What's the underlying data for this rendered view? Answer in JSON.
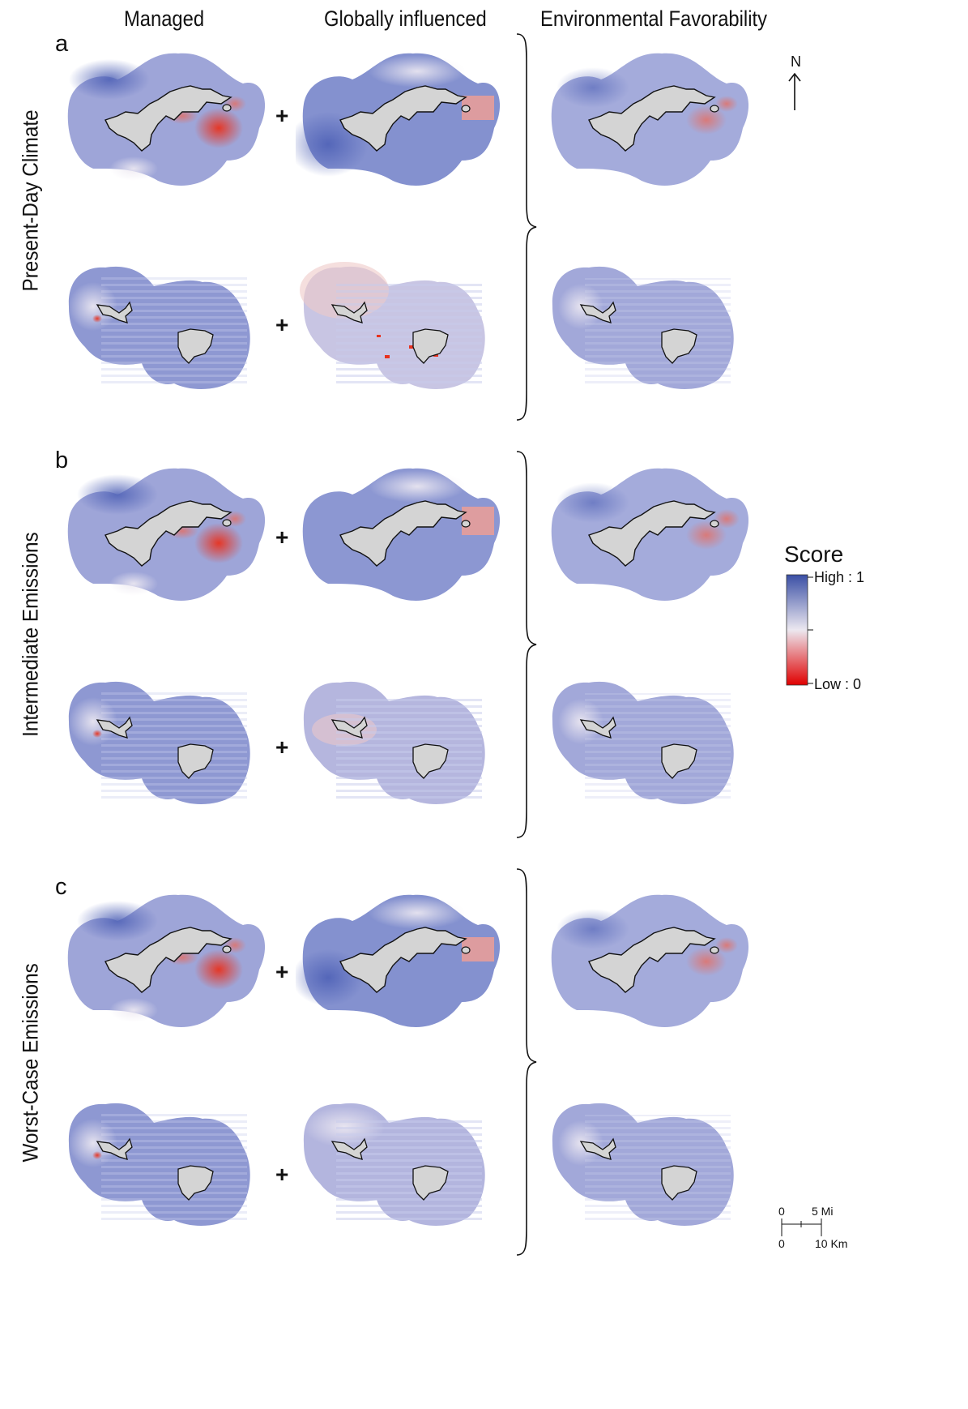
{
  "columns": {
    "managed": "Managed",
    "global": "Globally influenced",
    "favorability": "Environmental Favorability"
  },
  "panels": [
    {
      "letter": "a",
      "row_label": "Present-Day Climate"
    },
    {
      "letter": "b",
      "row_label": "Intermediate Emissions"
    },
    {
      "letter": "c",
      "row_label": "Worst-Case Emissions"
    }
  ],
  "operator": "+",
  "legend": {
    "title": "Score",
    "high_label": "High : 1",
    "low_label": "Low : 0",
    "high_color": "#3a4fa5",
    "mid_color": "#ece8f0",
    "low_color": "#e00000"
  },
  "north_label": "N",
  "scale_bar": {
    "mi_start": "0",
    "mi_end": "5 Mi",
    "km_start": "0",
    "km_end": "10 Km"
  },
  "colors": {
    "island_fill": "#d4d4d4",
    "managed_base": "#9aa2d6",
    "global_base": "#7f8dcc",
    "fav_base": "#a3aad9",
    "hotspot": "#e8321e"
  }
}
